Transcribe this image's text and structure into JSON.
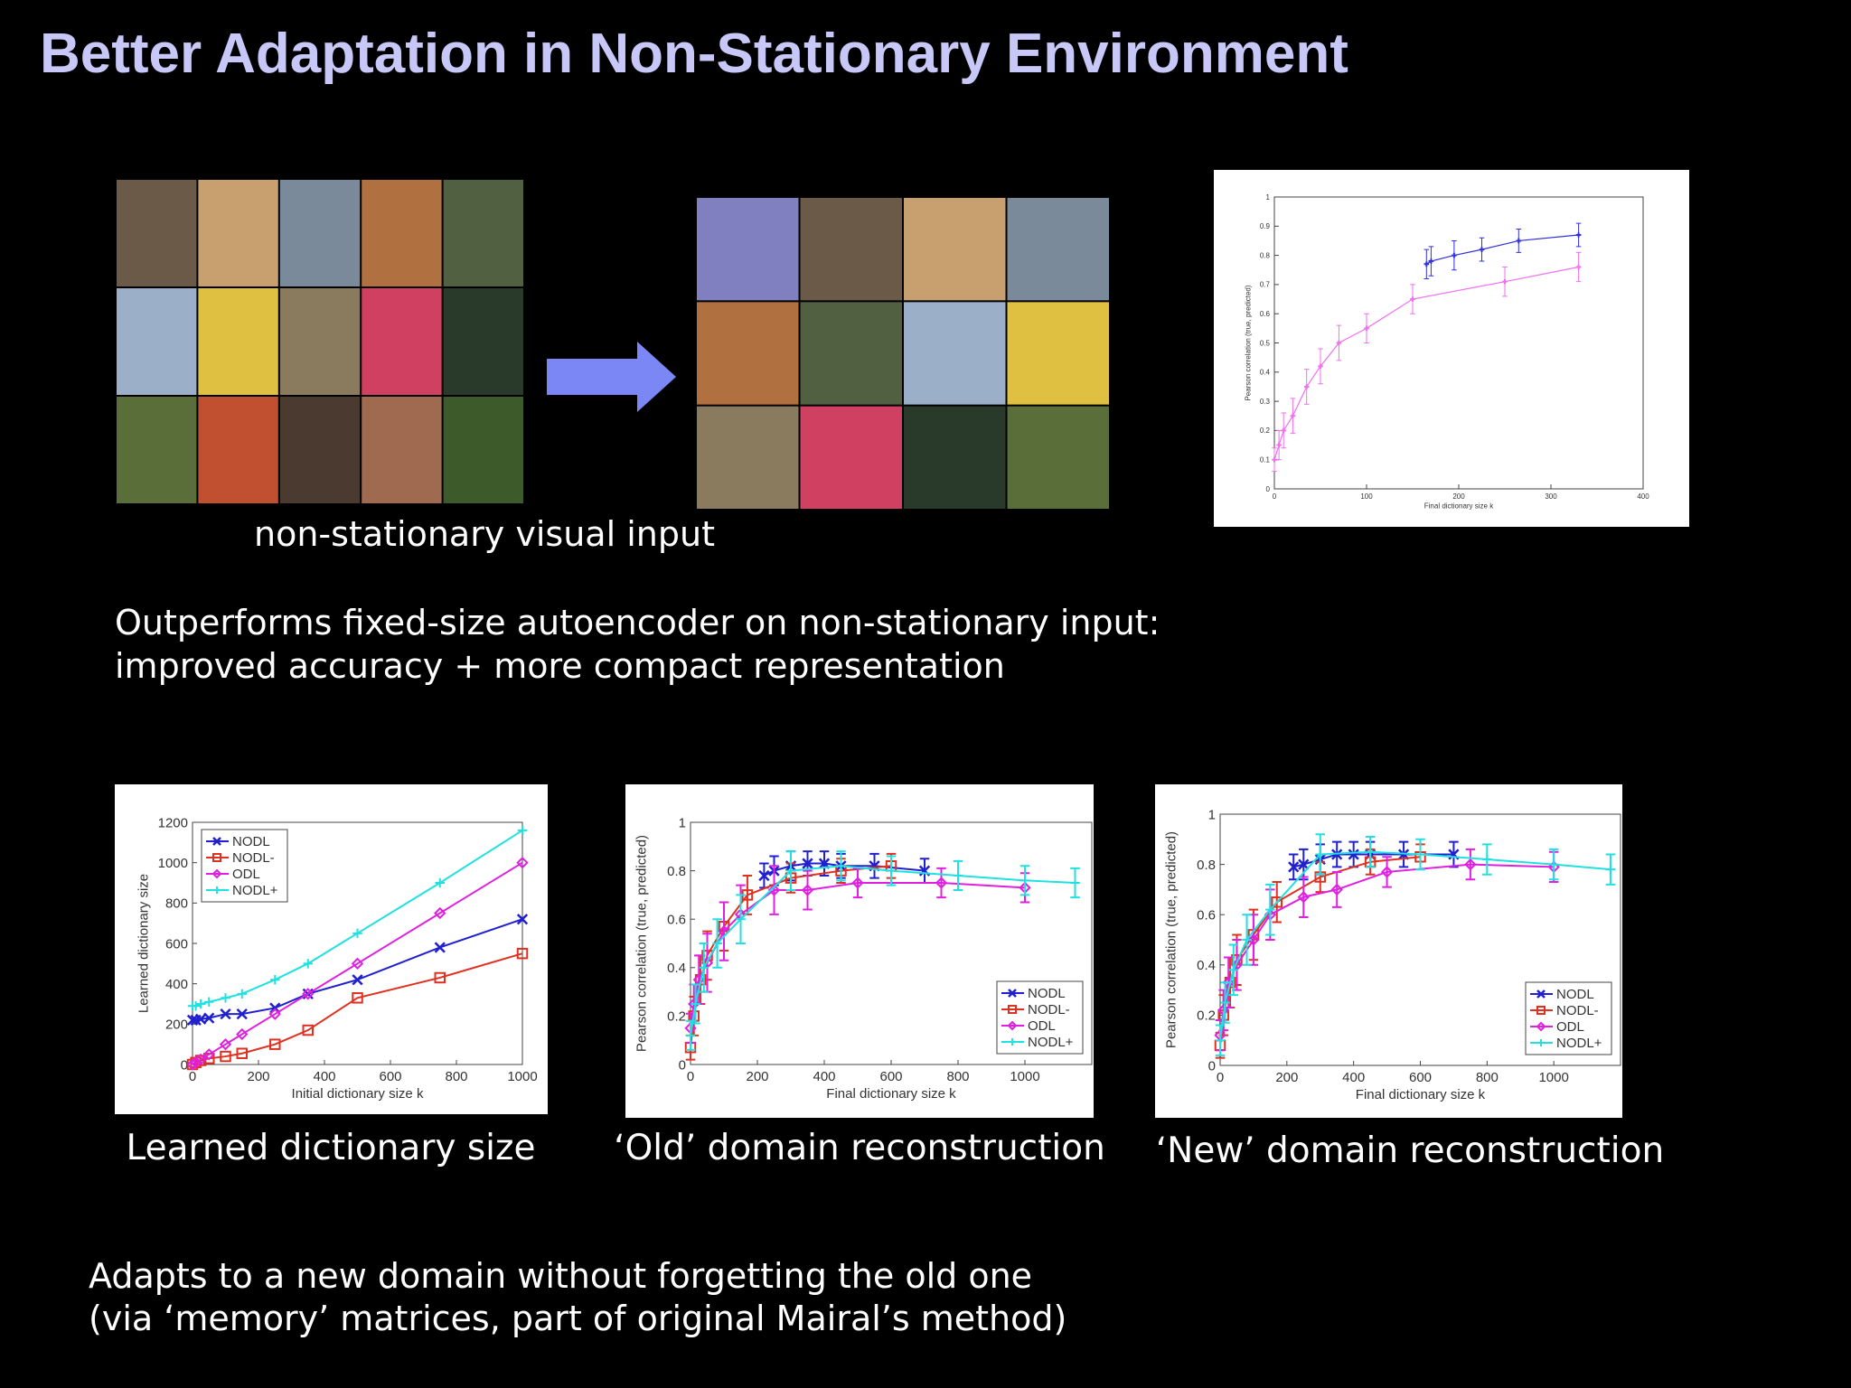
{
  "title": "Better Adaptation in Non-Stationary Environment",
  "input_caption": "non-stationary visual input",
  "summary": [
    "Outperforms fixed-size autoencoder on non-stationary input:",
    "improved accuracy + more compact representation"
  ],
  "captions": [
    "Learned dictionary size",
    "‘Old’ domain reconstruction",
    "‘New’ domain reconstruction"
  ],
  "conclusion": [
    "Adapts to a new domain without forgetting the old one",
    "(via ‘memory’ matrices, part of original Mairal’s method)"
  ],
  "chart_data": [
    {
      "type": "line",
      "xlabel": "Initial dictionary size k",
      "ylabel": "Learned dictionary size",
      "legend": "upper left",
      "x": [
        0,
        10,
        25,
        50,
        100,
        150,
        250,
        350,
        500,
        750,
        1000
      ],
      "xlim": [
        0,
        1000
      ],
      "xticks": [
        0,
        200,
        400,
        600,
        800,
        1000
      ],
      "ylim": [
        0,
        1200
      ],
      "yticks": [
        0,
        200,
        400,
        600,
        800,
        1000,
        1200
      ],
      "series": [
        {
          "name": "NODL",
          "color": "#2020d0",
          "marker": "x",
          "values": [
            220,
            220,
            225,
            230,
            250,
            250,
            280,
            350,
            420,
            580,
            720
          ]
        },
        {
          "name": "NODL-",
          "color": "#e03020",
          "marker": "square",
          "values": [
            0,
            10,
            20,
            30,
            40,
            55,
            100,
            170,
            330,
            430,
            550
          ]
        },
        {
          "name": "ODL",
          "color": "#e020e0",
          "marker": "diamond",
          "values": [
            0,
            10,
            25,
            50,
            100,
            150,
            250,
            350,
            500,
            750,
            1000
          ]
        },
        {
          "name": "NODL+",
          "color": "#20e0e0",
          "marker": "plus",
          "values": [
            290,
            290,
            300,
            310,
            330,
            350,
            420,
            500,
            650,
            900,
            1160
          ]
        }
      ]
    },
    {
      "type": "line",
      "xlabel": "Final dictionary size k",
      "ylabel": "Pearson correlation (true, predicted)",
      "legend": "lower right",
      "xlim": [
        0,
        1200
      ],
      "xticks": [
        0,
        200,
        400,
        600,
        800,
        1000
      ],
      "ylim": [
        0,
        1
      ],
      "yticks": [
        0,
        0.2,
        0.4,
        0.6,
        0.8,
        1
      ],
      "series": [
        {
          "name": "NODL",
          "color": "#2020d0",
          "marker": "x",
          "x": [
            220,
            250,
            300,
            350,
            400,
            450,
            550,
            700
          ],
          "values": [
            0.78,
            0.8,
            0.82,
            0.83,
            0.83,
            0.82,
            0.82,
            0.8
          ],
          "errors": [
            0.05,
            0.06,
            0.06,
            0.05,
            0.05,
            0.05,
            0.05,
            0.05
          ]
        },
        {
          "name": "NODL-",
          "color": "#e03020",
          "marker": "square",
          "x": [
            0,
            10,
            30,
            50,
            100,
            170,
            300,
            450,
            600
          ],
          "values": [
            0.07,
            0.2,
            0.35,
            0.45,
            0.57,
            0.7,
            0.77,
            0.8,
            0.82
          ],
          "errors": [
            0.05,
            0.08,
            0.1,
            0.1,
            0.1,
            0.08,
            0.06,
            0.05,
            0.05
          ]
        },
        {
          "name": "ODL",
          "color": "#e020e0",
          "marker": "diamond",
          "x": [
            0,
            10,
            25,
            50,
            100,
            150,
            250,
            350,
            500,
            750,
            1000
          ],
          "values": [
            0.15,
            0.25,
            0.35,
            0.42,
            0.55,
            0.62,
            0.72,
            0.72,
            0.75,
            0.75,
            0.73
          ],
          "errors": [
            0.06,
            0.08,
            0.1,
            0.12,
            0.12,
            0.12,
            0.1,
            0.08,
            0.06,
            0.06,
            0.06
          ]
        },
        {
          "name": "NODL+",
          "color": "#20e0e0",
          "marker": "plus",
          "x": [
            0,
            15,
            40,
            80,
            150,
            300,
            450,
            600,
            800,
            1000,
            1150
          ],
          "values": [
            0.12,
            0.25,
            0.4,
            0.5,
            0.6,
            0.8,
            0.82,
            0.8,
            0.78,
            0.76,
            0.75
          ],
          "errors": [
            0.06,
            0.08,
            0.1,
            0.1,
            0.1,
            0.08,
            0.06,
            0.06,
            0.06,
            0.06,
            0.06
          ]
        }
      ]
    },
    {
      "type": "line",
      "xlabel": "Final dictionary size k",
      "ylabel": "Pearson correlation (true, predicted)",
      "legend": "lower right",
      "xlim": [
        0,
        1200
      ],
      "xticks": [
        0,
        200,
        400,
        600,
        800,
        1000
      ],
      "ylim": [
        0,
        1
      ],
      "yticks": [
        0,
        0.2,
        0.4,
        0.6,
        0.8,
        1
      ],
      "series": [
        {
          "name": "NODL",
          "color": "#2020d0",
          "marker": "x",
          "x": [
            220,
            250,
            300,
            350,
            400,
            450,
            550,
            700
          ],
          "values": [
            0.79,
            0.8,
            0.82,
            0.84,
            0.84,
            0.84,
            0.84,
            0.84
          ],
          "errors": [
            0.05,
            0.06,
            0.06,
            0.05,
            0.05,
            0.05,
            0.05,
            0.05
          ]
        },
        {
          "name": "NODL-",
          "color": "#e03020",
          "marker": "square",
          "x": [
            0,
            10,
            30,
            50,
            100,
            170,
            300,
            450,
            600
          ],
          "values": [
            0.08,
            0.2,
            0.33,
            0.42,
            0.52,
            0.65,
            0.75,
            0.81,
            0.83
          ],
          "errors": [
            0.05,
            0.08,
            0.1,
            0.1,
            0.1,
            0.08,
            0.06,
            0.05,
            0.05
          ]
        },
        {
          "name": "ODL",
          "color": "#e020e0",
          "marker": "diamond",
          "x": [
            0,
            10,
            25,
            50,
            100,
            150,
            250,
            350,
            500,
            750,
            1000
          ],
          "values": [
            0.12,
            0.22,
            0.33,
            0.4,
            0.5,
            0.6,
            0.67,
            0.7,
            0.77,
            0.8,
            0.79
          ],
          "errors": [
            0.06,
            0.08,
            0.1,
            0.1,
            0.1,
            0.1,
            0.08,
            0.07,
            0.06,
            0.06,
            0.06
          ]
        },
        {
          "name": "NODL+",
          "color": "#20e0e0",
          "marker": "plus",
          "x": [
            0,
            15,
            40,
            80,
            150,
            300,
            450,
            600,
            800,
            1000,
            1170
          ],
          "values": [
            0.1,
            0.25,
            0.38,
            0.5,
            0.62,
            0.84,
            0.85,
            0.84,
            0.82,
            0.8,
            0.78
          ],
          "errors": [
            0.06,
            0.08,
            0.1,
            0.1,
            0.1,
            0.08,
            0.06,
            0.06,
            0.06,
            0.06,
            0.06
          ]
        }
      ]
    },
    {
      "type": "line",
      "xlabel": "Final dictionary size k",
      "ylabel": "Pearson correlation (true, predicted)",
      "xlim": [
        0,
        400
      ],
      "xticks": [
        0,
        100,
        200,
        300,
        400
      ],
      "ylim": [
        0,
        1
      ],
      "yticks": [
        0,
        0.1,
        0.2,
        0.3,
        0.4,
        0.5,
        0.6,
        0.7,
        0.8,
        0.9,
        1
      ],
      "series": [
        {
          "color": "#3030e0",
          "marker": "plus",
          "x": [
            165,
            170,
            195,
            225,
            265,
            330
          ],
          "values": [
            0.77,
            0.78,
            0.8,
            0.82,
            0.85,
            0.87
          ],
          "errors": [
            0.05,
            0.05,
            0.05,
            0.04,
            0.04,
            0.04
          ]
        },
        {
          "color": "#f070f0",
          "marker": "plus",
          "x": [
            0,
            5,
            10,
            20,
            35,
            50,
            70,
            100,
            150,
            250,
            330
          ],
          "values": [
            0.1,
            0.15,
            0.2,
            0.25,
            0.35,
            0.42,
            0.5,
            0.55,
            0.65,
            0.71,
            0.76
          ],
          "errors": [
            0.04,
            0.05,
            0.06,
            0.06,
            0.06,
            0.06,
            0.06,
            0.05,
            0.05,
            0.05,
            0.05
          ]
        }
      ]
    }
  ]
}
